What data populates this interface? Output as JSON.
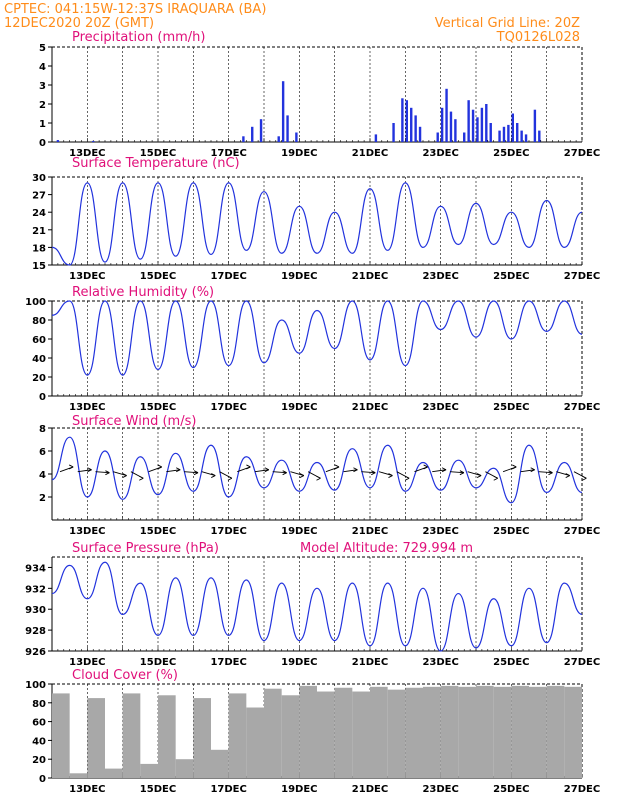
{
  "header": {
    "line1_left": "CPTEC:  041:15W-12:37S  IRAQUARA (BA)",
    "line2_left": "12DEC2020 20Z (GMT)",
    "line1_right": "Vertical Grid Line: 20Z",
    "line2_right": "TQ0126L028"
  },
  "colors": {
    "line": "#2233dd",
    "title": "#e0107a",
    "header": "#ff8c1a",
    "cloud_fill": "#a8a8a8",
    "arrow": "#000000",
    "axis": "#000000"
  },
  "x_axis": {
    "start": "2020-12-12T20:00Z",
    "end": "2020-12-27T20:00Z",
    "tick_labels": [
      "13DEC",
      "15DEC",
      "17DEC",
      "19DEC",
      "21DEC",
      "23DEC",
      "25DEC",
      "27DEC"
    ]
  },
  "chart_data": [
    {
      "type": "bar",
      "title": "Precipitation (mm/h)",
      "ylim": [
        0,
        5
      ],
      "yticks": [
        0,
        1,
        2,
        3,
        4,
        5
      ],
      "x": [
        "2020-12-13T00Z",
        "2020-12-14T00Z",
        "2020-12-18T06Z",
        "2020-12-18T12Z",
        "2020-12-18T18Z",
        "2020-12-19T06Z",
        "2020-12-19T09Z",
        "2020-12-19T12Z",
        "2020-12-19T18Z",
        "2020-12-22T00Z",
        "2020-12-22T12Z",
        "2020-12-22T18Z",
        "2020-12-22T21Z",
        "2020-12-23T00Z",
        "2020-12-23T03Z",
        "2020-12-23T06Z",
        "2020-12-23T18Z",
        "2020-12-23T21Z",
        "2020-12-24T00Z",
        "2020-12-24T03Z",
        "2020-12-24T06Z",
        "2020-12-24T12Z",
        "2020-12-24T15Z",
        "2020-12-24T18Z",
        "2020-12-24T21Z",
        "2020-12-25T00Z",
        "2020-12-25T03Z",
        "2020-12-25T06Z",
        "2020-12-25T12Z",
        "2020-12-25T15Z",
        "2020-12-25T18Z",
        "2020-12-25T21Z",
        "2020-12-26T00Z",
        "2020-12-26T03Z",
        "2020-12-26T06Z",
        "2020-12-26T12Z",
        "2020-12-26T15Z"
      ],
      "values": [
        0.1,
        0.05,
        0.3,
        0.8,
        1.2,
        0.3,
        3.2,
        1.4,
        0.5,
        0.4,
        1.0,
        2.3,
        2.2,
        1.8,
        1.4,
        0.8,
        0.5,
        1.8,
        2.8,
        1.6,
        1.2,
        0.5,
        2.2,
        1.7,
        1.3,
        1.8,
        2.0,
        1.0,
        0.6,
        0.8,
        0.9,
        1.5,
        1.0,
        0.6,
        0.4,
        1.7,
        0.6
      ]
    },
    {
      "type": "line",
      "title": "Surface Temperature (nC)",
      "ylim": [
        15,
        30
      ],
      "yticks": [
        15,
        18,
        21,
        24,
        27,
        30
      ],
      "series": [
        {
          "x": [
            "2020-12-12T20Z",
            "2020-12-13T08Z",
            "2020-12-13T20Z",
            "2020-12-14T08Z",
            "2020-12-14T20Z",
            "2020-12-15T08Z",
            "2020-12-15T20Z",
            "2020-12-16T08Z",
            "2020-12-16T20Z",
            "2020-12-17T08Z",
            "2020-12-17T20Z",
            "2020-12-18T08Z",
            "2020-12-18T20Z",
            "2020-12-19T08Z",
            "2020-12-19T20Z",
            "2020-12-20T08Z",
            "2020-12-20T20Z",
            "2020-12-21T08Z",
            "2020-12-21T20Z",
            "2020-12-22T08Z",
            "2020-12-22T20Z",
            "2020-12-23T08Z",
            "2020-12-23T20Z",
            "2020-12-24T08Z",
            "2020-12-24T20Z",
            "2020-12-25T08Z",
            "2020-12-25T20Z",
            "2020-12-26T08Z",
            "2020-12-26T20Z",
            "2020-12-27T08Z",
            "2020-12-27T20Z"
          ],
          "values": [
            18,
            15,
            29,
            15.5,
            29,
            16,
            29,
            16.5,
            29,
            16.8,
            29,
            17.5,
            27.5,
            17,
            25,
            17,
            24,
            17,
            28,
            17.5,
            29,
            18,
            25,
            18.5,
            25.5,
            18.5,
            24,
            18,
            26,
            18,
            24
          ]
        }
      ]
    },
    {
      "type": "line",
      "title": "Relative Humidity (%)",
      "ylim": [
        0,
        100
      ],
      "yticks": [
        0,
        20,
        40,
        60,
        80,
        100
      ],
      "series": [
        {
          "x": [
            "2020-12-12T20Z",
            "2020-12-13T08Z",
            "2020-12-13T20Z",
            "2020-12-14T08Z",
            "2020-12-14T20Z",
            "2020-12-15T08Z",
            "2020-12-15T20Z",
            "2020-12-16T08Z",
            "2020-12-16T20Z",
            "2020-12-17T08Z",
            "2020-12-17T20Z",
            "2020-12-18T08Z",
            "2020-12-18T20Z",
            "2020-12-19T08Z",
            "2020-12-19T20Z",
            "2020-12-20T08Z",
            "2020-12-20T20Z",
            "2020-12-21T08Z",
            "2020-12-21T20Z",
            "2020-12-22T08Z",
            "2020-12-22T20Z",
            "2020-12-23T08Z",
            "2020-12-23T20Z",
            "2020-12-24T08Z",
            "2020-12-24T20Z",
            "2020-12-25T08Z",
            "2020-12-25T20Z",
            "2020-12-26T08Z",
            "2020-12-26T20Z",
            "2020-12-27T08Z",
            "2020-12-27T20Z"
          ],
          "values": [
            85,
            100,
            22,
            100,
            22,
            100,
            28,
            100,
            30,
            100,
            32,
            100,
            35,
            80,
            45,
            90,
            50,
            100,
            38,
            100,
            32,
            100,
            70,
            100,
            62,
            100,
            60,
            100,
            68,
            100,
            65
          ]
        }
      ]
    },
    {
      "type": "line",
      "title": "Surface Wind (m/s)",
      "ylim": [
        0,
        8
      ],
      "yticks": [
        2,
        4,
        6,
        8
      ],
      "series": [
        {
          "x": [
            "2020-12-12T20Z",
            "2020-12-13T08Z",
            "2020-12-13T20Z",
            "2020-12-14T08Z",
            "2020-12-14T20Z",
            "2020-12-15T08Z",
            "2020-12-15T20Z",
            "2020-12-16T08Z",
            "2020-12-16T20Z",
            "2020-12-17T08Z",
            "2020-12-17T20Z",
            "2020-12-18T08Z",
            "2020-12-18T20Z",
            "2020-12-19T08Z",
            "2020-12-19T20Z",
            "2020-12-20T08Z",
            "2020-12-20T20Z",
            "2020-12-21T08Z",
            "2020-12-21T20Z",
            "2020-12-22T08Z",
            "2020-12-22T20Z",
            "2020-12-23T08Z",
            "2020-12-23T20Z",
            "2020-12-24T08Z",
            "2020-12-24T20Z",
            "2020-12-25T08Z",
            "2020-12-25T20Z",
            "2020-12-26T08Z",
            "2020-12-26T20Z",
            "2020-12-27T08Z",
            "2020-12-27T20Z"
          ],
          "values": [
            3.5,
            7.2,
            2.0,
            6.0,
            1.8,
            5.5,
            2.2,
            5.8,
            2.5,
            6.5,
            2.0,
            5.5,
            2.8,
            5.2,
            2.5,
            5.0,
            2.6,
            6.2,
            2.8,
            6.5,
            2.5,
            5.0,
            2.6,
            5.2,
            2.8,
            4.5,
            1.5,
            6.5,
            2.4,
            5.0,
            2.4
          ]
        }
      ]
    },
    {
      "type": "line",
      "title": "Surface Pressure (hPa)",
      "annotation": "Model Altitude: 729.994 m",
      "ylim": [
        926,
        935
      ],
      "yticks": [
        926,
        928,
        930,
        932,
        934
      ],
      "series": [
        {
          "x": [
            "2020-12-12T20Z",
            "2020-12-13T08Z",
            "2020-12-13T20Z",
            "2020-12-14T08Z",
            "2020-12-14T20Z",
            "2020-12-15T08Z",
            "2020-12-15T20Z",
            "2020-12-16T08Z",
            "2020-12-16T20Z",
            "2020-12-17T08Z",
            "2020-12-17T20Z",
            "2020-12-18T08Z",
            "2020-12-18T20Z",
            "2020-12-19T08Z",
            "2020-12-19T20Z",
            "2020-12-20T08Z",
            "2020-12-20T20Z",
            "2020-12-21T08Z",
            "2020-12-21T20Z",
            "2020-12-22T08Z",
            "2020-12-22T20Z",
            "2020-12-23T08Z",
            "2020-12-23T20Z",
            "2020-12-24T08Z",
            "2020-12-24T20Z",
            "2020-12-25T08Z",
            "2020-12-25T20Z",
            "2020-12-26T08Z",
            "2020-12-26T20Z",
            "2020-12-27T08Z",
            "2020-12-27T20Z"
          ],
          "values": [
            931.5,
            934.2,
            931,
            934.5,
            929.5,
            932.5,
            927.5,
            933,
            927.5,
            933,
            927.5,
            932.8,
            927,
            932.5,
            927,
            932,
            927,
            932.5,
            926.5,
            932.5,
            926.5,
            932,
            926,
            931.5,
            926.3,
            931,
            926.5,
            932,
            926.8,
            932.5,
            929.5
          ]
        }
      ]
    },
    {
      "type": "bar",
      "title": "Cloud Cover (%)",
      "ylim": [
        0,
        100
      ],
      "yticks": [
        0,
        20,
        40,
        60,
        80,
        100
      ],
      "x": [
        "2020-12-12T20Z",
        "2020-12-13T08Z",
        "2020-12-13T20Z",
        "2020-12-14T08Z",
        "2020-12-14T20Z",
        "2020-12-15T08Z",
        "2020-12-15T20Z",
        "2020-12-16T08Z",
        "2020-12-16T20Z",
        "2020-12-17T08Z",
        "2020-12-17T20Z",
        "2020-12-18T08Z",
        "2020-12-18T20Z",
        "2020-12-19T08Z",
        "2020-12-19T20Z",
        "2020-12-20T08Z",
        "2020-12-20T20Z",
        "2020-12-21T08Z",
        "2020-12-21T20Z",
        "2020-12-22T08Z",
        "2020-12-22T20Z",
        "2020-12-23T08Z",
        "2020-12-23T20Z",
        "2020-12-24T08Z",
        "2020-12-24T20Z",
        "2020-12-25T08Z",
        "2020-12-25T20Z",
        "2020-12-26T08Z",
        "2020-12-26T20Z",
        "2020-12-27T08Z"
      ],
      "values": [
        90,
        5,
        85,
        10,
        90,
        15,
        88,
        20,
        85,
        30,
        90,
        75,
        95,
        88,
        98,
        92,
        96,
        92,
        97,
        94,
        96,
        97,
        98,
        97,
        98,
        97,
        98,
        97,
        98,
        97
      ]
    }
  ]
}
